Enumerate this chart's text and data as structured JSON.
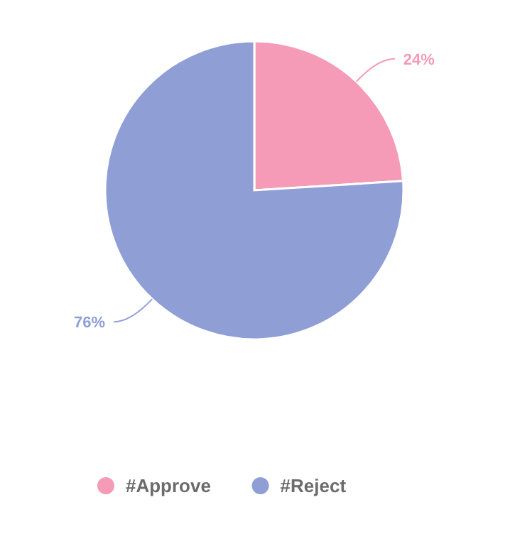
{
  "chart_data": {
    "type": "pie",
    "categories": [
      "#Approve",
      "#Reject"
    ],
    "values": [
      24,
      76
    ],
    "colors": [
      "#f59ab7",
      "#8f9fd6"
    ],
    "value_labels": [
      "24%",
      "76%"
    ],
    "legend": "bottom"
  }
}
